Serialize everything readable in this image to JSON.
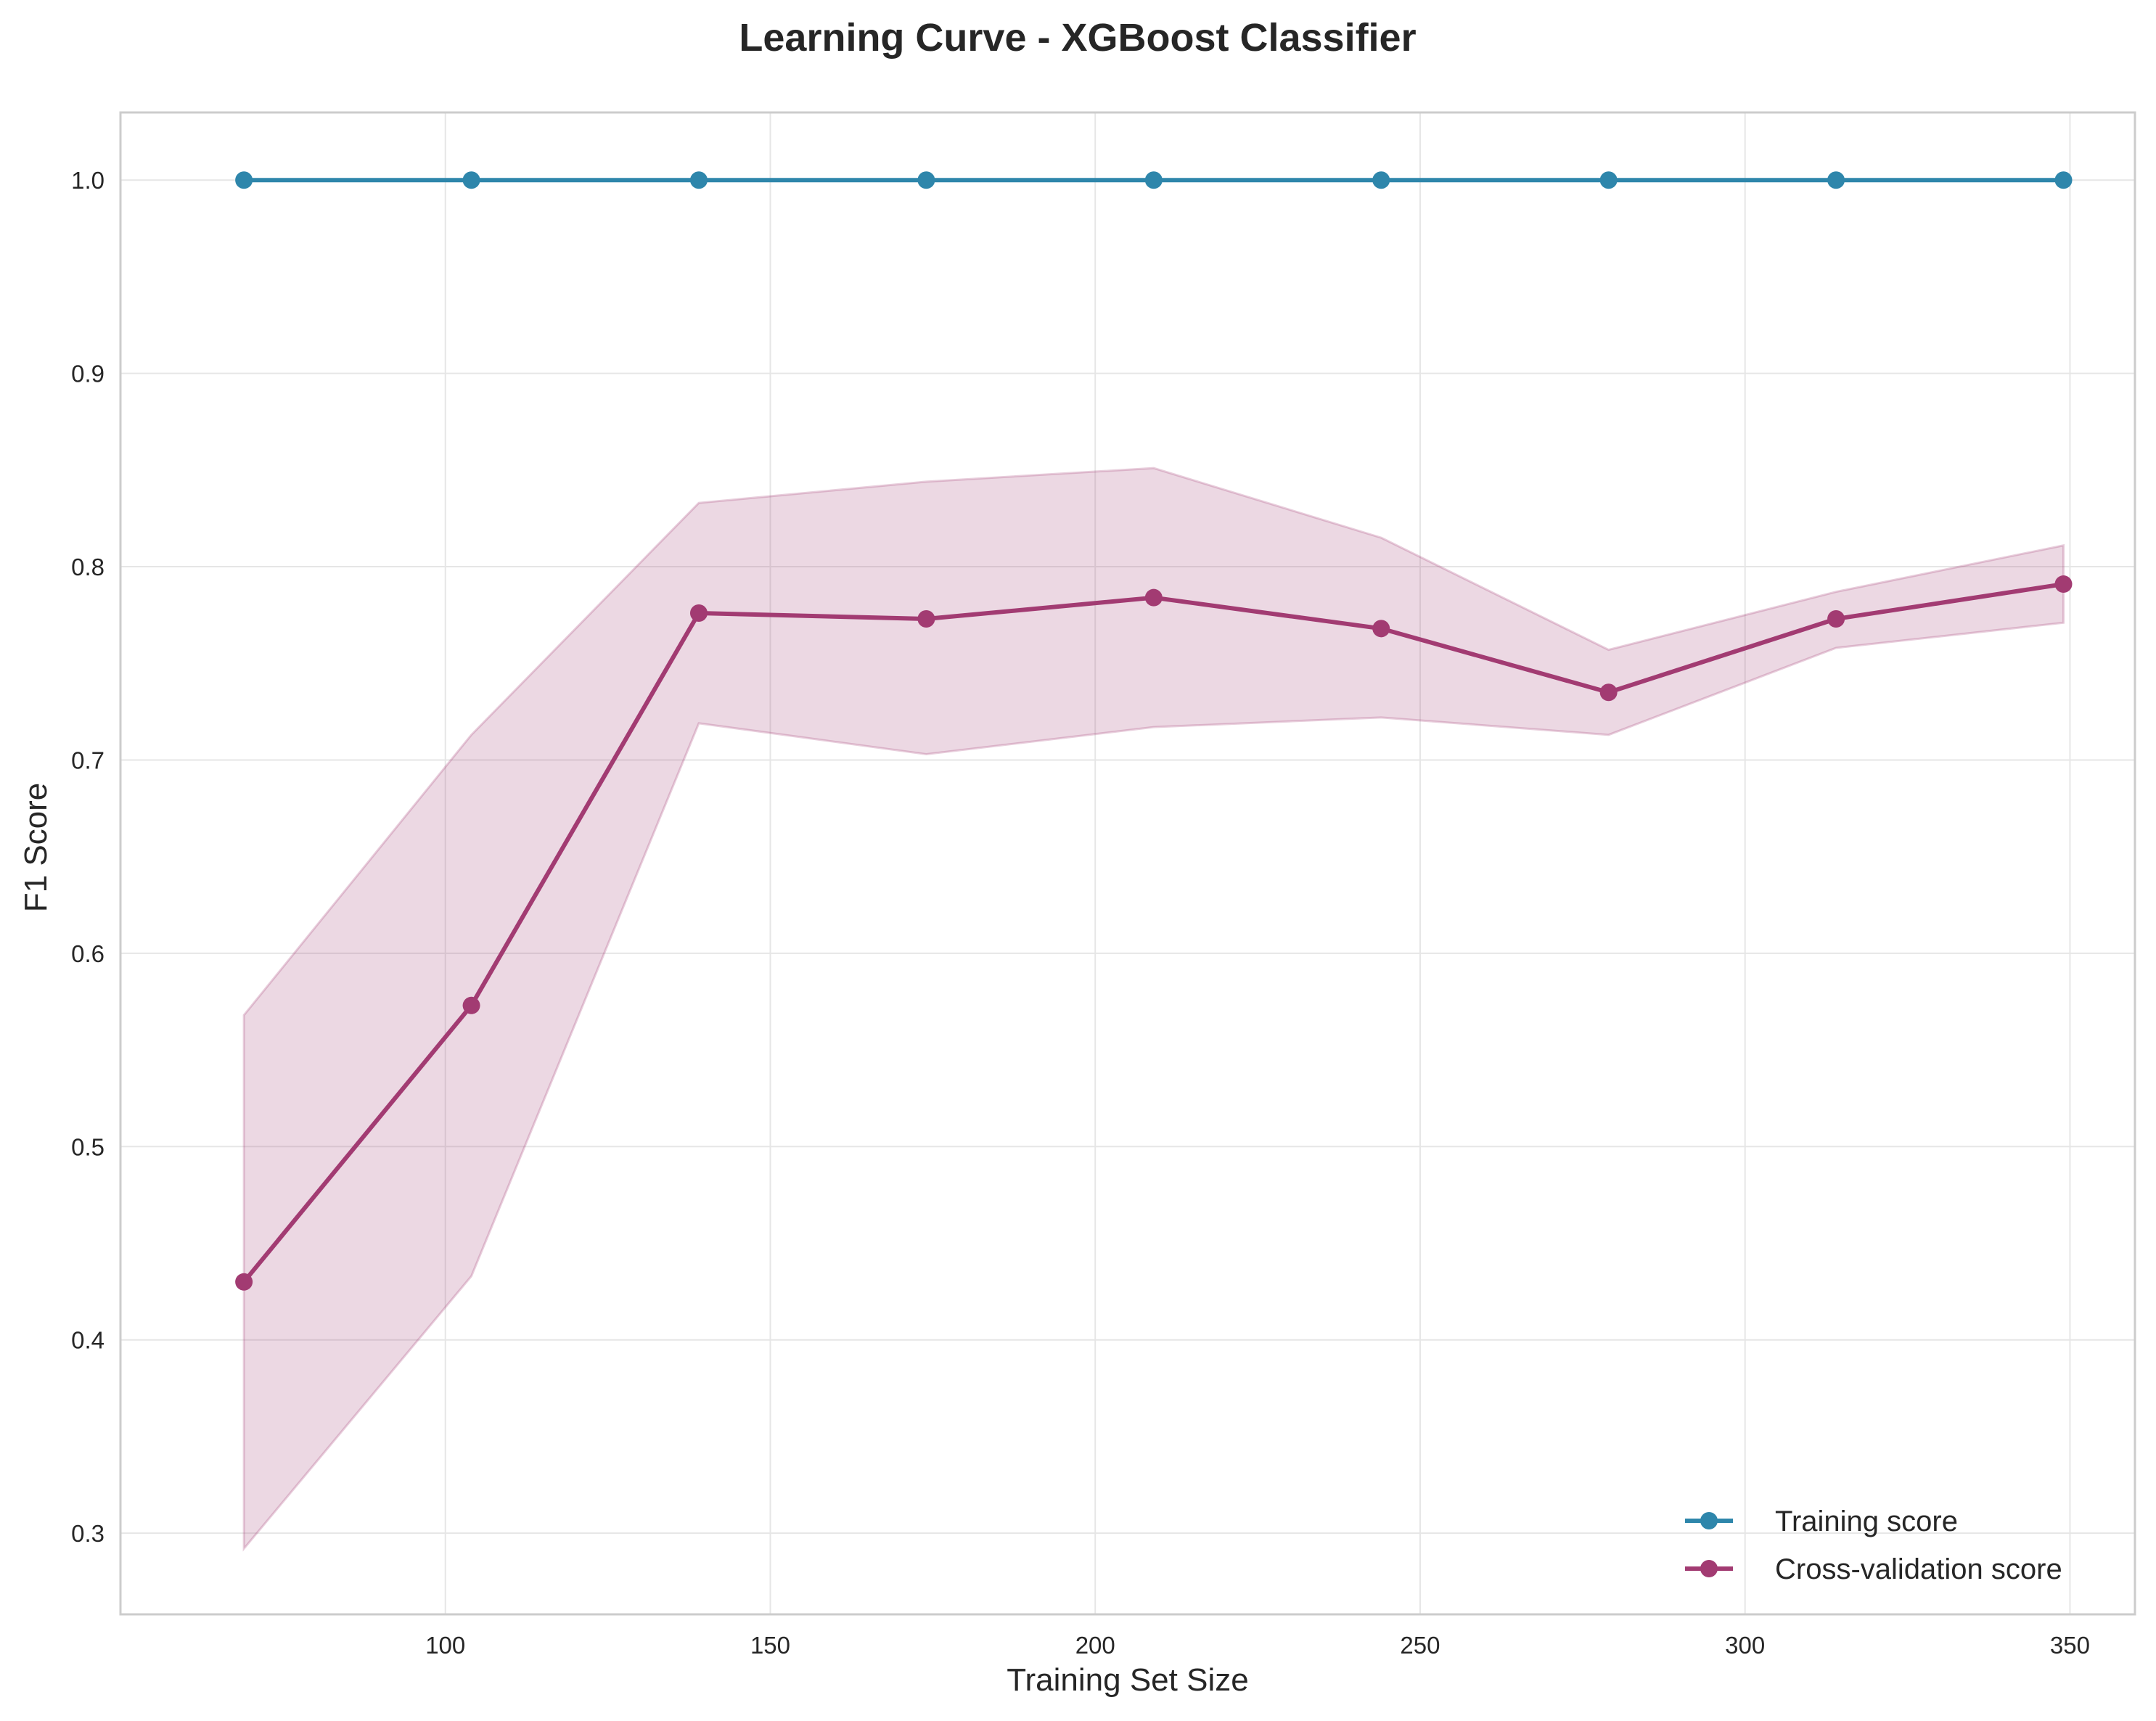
{
  "chart_data": {
    "type": "line",
    "title": "Learning Curve - XGBoost Classifier",
    "xlabel": "Training Set Size",
    "ylabel": "F1 Score",
    "xlim": [
      50,
      360
    ],
    "ylim": [
      0.258,
      1.035
    ],
    "xticks": [
      100,
      150,
      200,
      250,
      300,
      350
    ],
    "yticks": [
      0.3,
      0.4,
      0.5,
      0.6,
      0.7,
      0.8,
      0.9,
      1.0
    ],
    "xtick_labels": [
      "100",
      "150",
      "200",
      "250",
      "300",
      "350"
    ],
    "ytick_labels": [
      "0.3",
      "0.4",
      "0.5",
      "0.6",
      "0.7",
      "0.8",
      "0.9",
      "1.0"
    ],
    "x": [
      69,
      104,
      139,
      174,
      209,
      244,
      279,
      314,
      349
    ],
    "grid": true,
    "legend_position": "lower-right",
    "series": [
      {
        "name": "Training score",
        "color": "#2e86ab",
        "marker": "circle",
        "values": [
          1.0,
          1.0,
          1.0,
          1.0,
          1.0,
          1.0,
          1.0,
          1.0,
          1.0
        ],
        "band_lower": [
          1.0,
          1.0,
          1.0,
          1.0,
          1.0,
          1.0,
          1.0,
          1.0,
          1.0
        ],
        "band_upper": [
          1.0,
          1.0,
          1.0,
          1.0,
          1.0,
          1.0,
          1.0,
          1.0,
          1.0
        ]
      },
      {
        "name": "Cross-validation score",
        "color": "#a23b72",
        "marker": "circle",
        "values": [
          0.43,
          0.573,
          0.776,
          0.773,
          0.784,
          0.768,
          0.735,
          0.773,
          0.791
        ],
        "band_lower": [
          0.292,
          0.433,
          0.719,
          0.703,
          0.717,
          0.722,
          0.713,
          0.758,
          0.771
        ],
        "band_upper": [
          0.568,
          0.713,
          0.833,
          0.844,
          0.851,
          0.815,
          0.757,
          0.787,
          0.811
        ]
      }
    ]
  }
}
